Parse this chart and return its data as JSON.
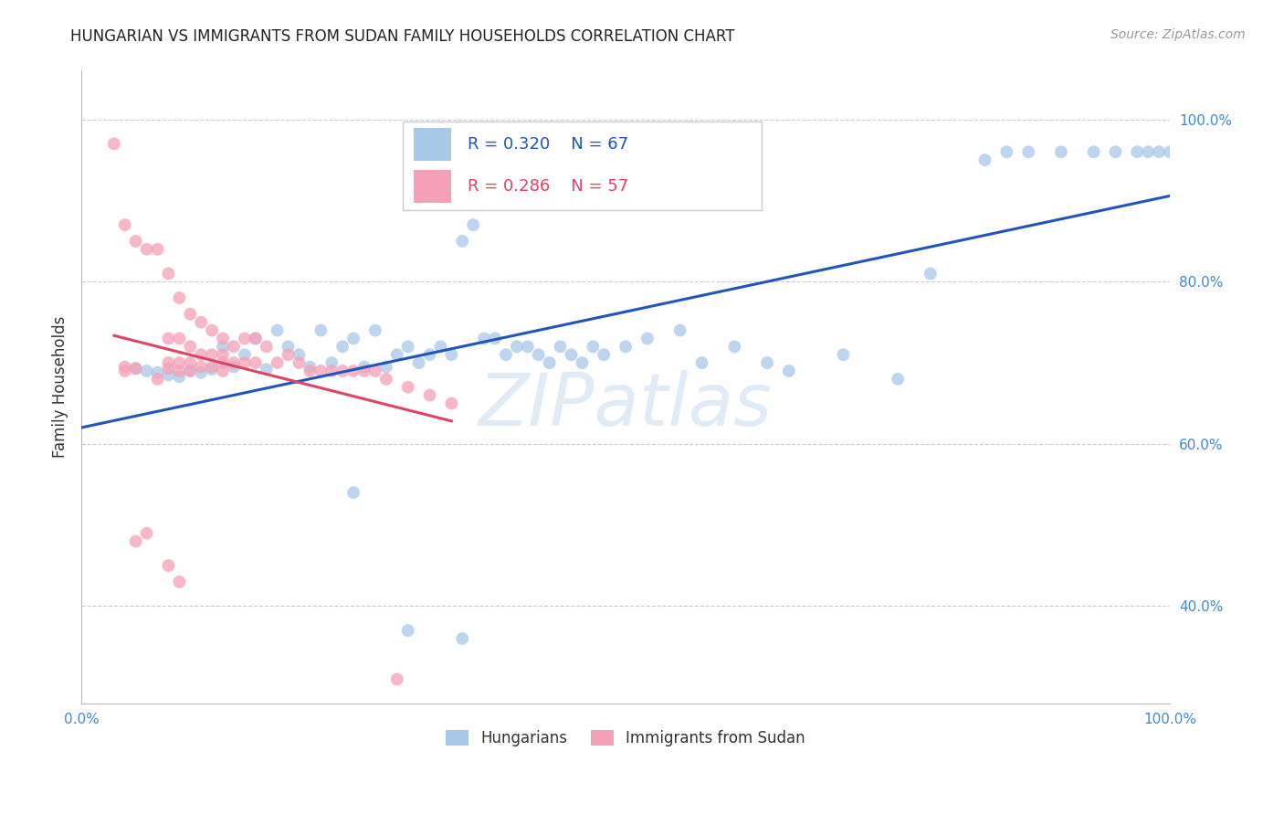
{
  "title": "HUNGARIAN VS IMMIGRANTS FROM SUDAN FAMILY HOUSEHOLDS CORRELATION CHART",
  "source": "Source: ZipAtlas.com",
  "ylabel": "Family Households",
  "right_yticks": [
    "100.0%",
    "80.0%",
    "60.0%",
    "40.0%"
  ],
  "right_ytick_vals": [
    1.0,
    0.8,
    0.6,
    0.4
  ],
  "xlim": [
    0.0,
    1.0
  ],
  "ylim": [
    0.28,
    1.06
  ],
  "watermark": "ZIPatlas",
  "legend_blue_r": "0.320",
  "legend_blue_n": "67",
  "legend_pink_r": "0.286",
  "legend_pink_n": "57",
  "blue_color": "#A8C8E8",
  "pink_color": "#F4A0B8",
  "blue_line_color": "#2255BB",
  "pink_line_color": "#DD4466",
  "grid_color": "#CCCCCC",
  "title_color": "#222222",
  "axis_color": "#4488CC",
  "blue_scatter_x": [
    0.05,
    0.06,
    0.07,
    0.08,
    0.09,
    0.1,
    0.11,
    0.12,
    0.13,
    0.14,
    0.15,
    0.16,
    0.17,
    0.18,
    0.19,
    0.2,
    0.21,
    0.22,
    0.23,
    0.24,
    0.25,
    0.26,
    0.27,
    0.28,
    0.29,
    0.3,
    0.31,
    0.32,
    0.33,
    0.34,
    0.35,
    0.36,
    0.37,
    0.38,
    0.39,
    0.4,
    0.41,
    0.42,
    0.43,
    0.44,
    0.45,
    0.46,
    0.47,
    0.48,
    0.5,
    0.52,
    0.55,
    0.57,
    0.6,
    0.63,
    0.65,
    0.7,
    0.75,
    0.78,
    0.83,
    0.85,
    0.87,
    0.9,
    0.93,
    0.95,
    0.97,
    0.98,
    0.99,
    1.0,
    0.25,
    0.3,
    0.35
  ],
  "blue_scatter_y": [
    0.693,
    0.69,
    0.688,
    0.685,
    0.683,
    0.69,
    0.688,
    0.692,
    0.72,
    0.695,
    0.71,
    0.73,
    0.692,
    0.74,
    0.72,
    0.71,
    0.695,
    0.74,
    0.7,
    0.72,
    0.73,
    0.695,
    0.74,
    0.695,
    0.71,
    0.72,
    0.7,
    0.71,
    0.72,
    0.71,
    0.85,
    0.87,
    0.73,
    0.73,
    0.71,
    0.72,
    0.72,
    0.71,
    0.7,
    0.72,
    0.71,
    0.7,
    0.72,
    0.71,
    0.72,
    0.73,
    0.74,
    0.7,
    0.72,
    0.7,
    0.69,
    0.71,
    0.68,
    0.81,
    0.95,
    0.96,
    0.96,
    0.96,
    0.96,
    0.96,
    0.96,
    0.96,
    0.96,
    0.96,
    0.54,
    0.37,
    0.36
  ],
  "pink_scatter_x": [
    0.03,
    0.04,
    0.04,
    0.04,
    0.05,
    0.05,
    0.06,
    0.07,
    0.07,
    0.08,
    0.08,
    0.08,
    0.08,
    0.09,
    0.09,
    0.09,
    0.09,
    0.1,
    0.1,
    0.1,
    0.1,
    0.11,
    0.11,
    0.11,
    0.12,
    0.12,
    0.12,
    0.13,
    0.13,
    0.13,
    0.13,
    0.14,
    0.14,
    0.15,
    0.15,
    0.16,
    0.16,
    0.17,
    0.18,
    0.19,
    0.2,
    0.21,
    0.22,
    0.23,
    0.24,
    0.25,
    0.26,
    0.27,
    0.28,
    0.3,
    0.32,
    0.34,
    0.05,
    0.06,
    0.08,
    0.09,
    0.29
  ],
  "pink_scatter_y": [
    0.97,
    0.87,
    0.695,
    0.69,
    0.85,
    0.693,
    0.84,
    0.84,
    0.68,
    0.81,
    0.73,
    0.7,
    0.693,
    0.78,
    0.73,
    0.7,
    0.69,
    0.76,
    0.72,
    0.7,
    0.69,
    0.75,
    0.71,
    0.695,
    0.74,
    0.71,
    0.695,
    0.73,
    0.71,
    0.7,
    0.69,
    0.72,
    0.7,
    0.73,
    0.7,
    0.73,
    0.7,
    0.72,
    0.7,
    0.71,
    0.7,
    0.69,
    0.69,
    0.69,
    0.69,
    0.69,
    0.69,
    0.69,
    0.68,
    0.67,
    0.66,
    0.65,
    0.48,
    0.49,
    0.45,
    0.43,
    0.31
  ]
}
